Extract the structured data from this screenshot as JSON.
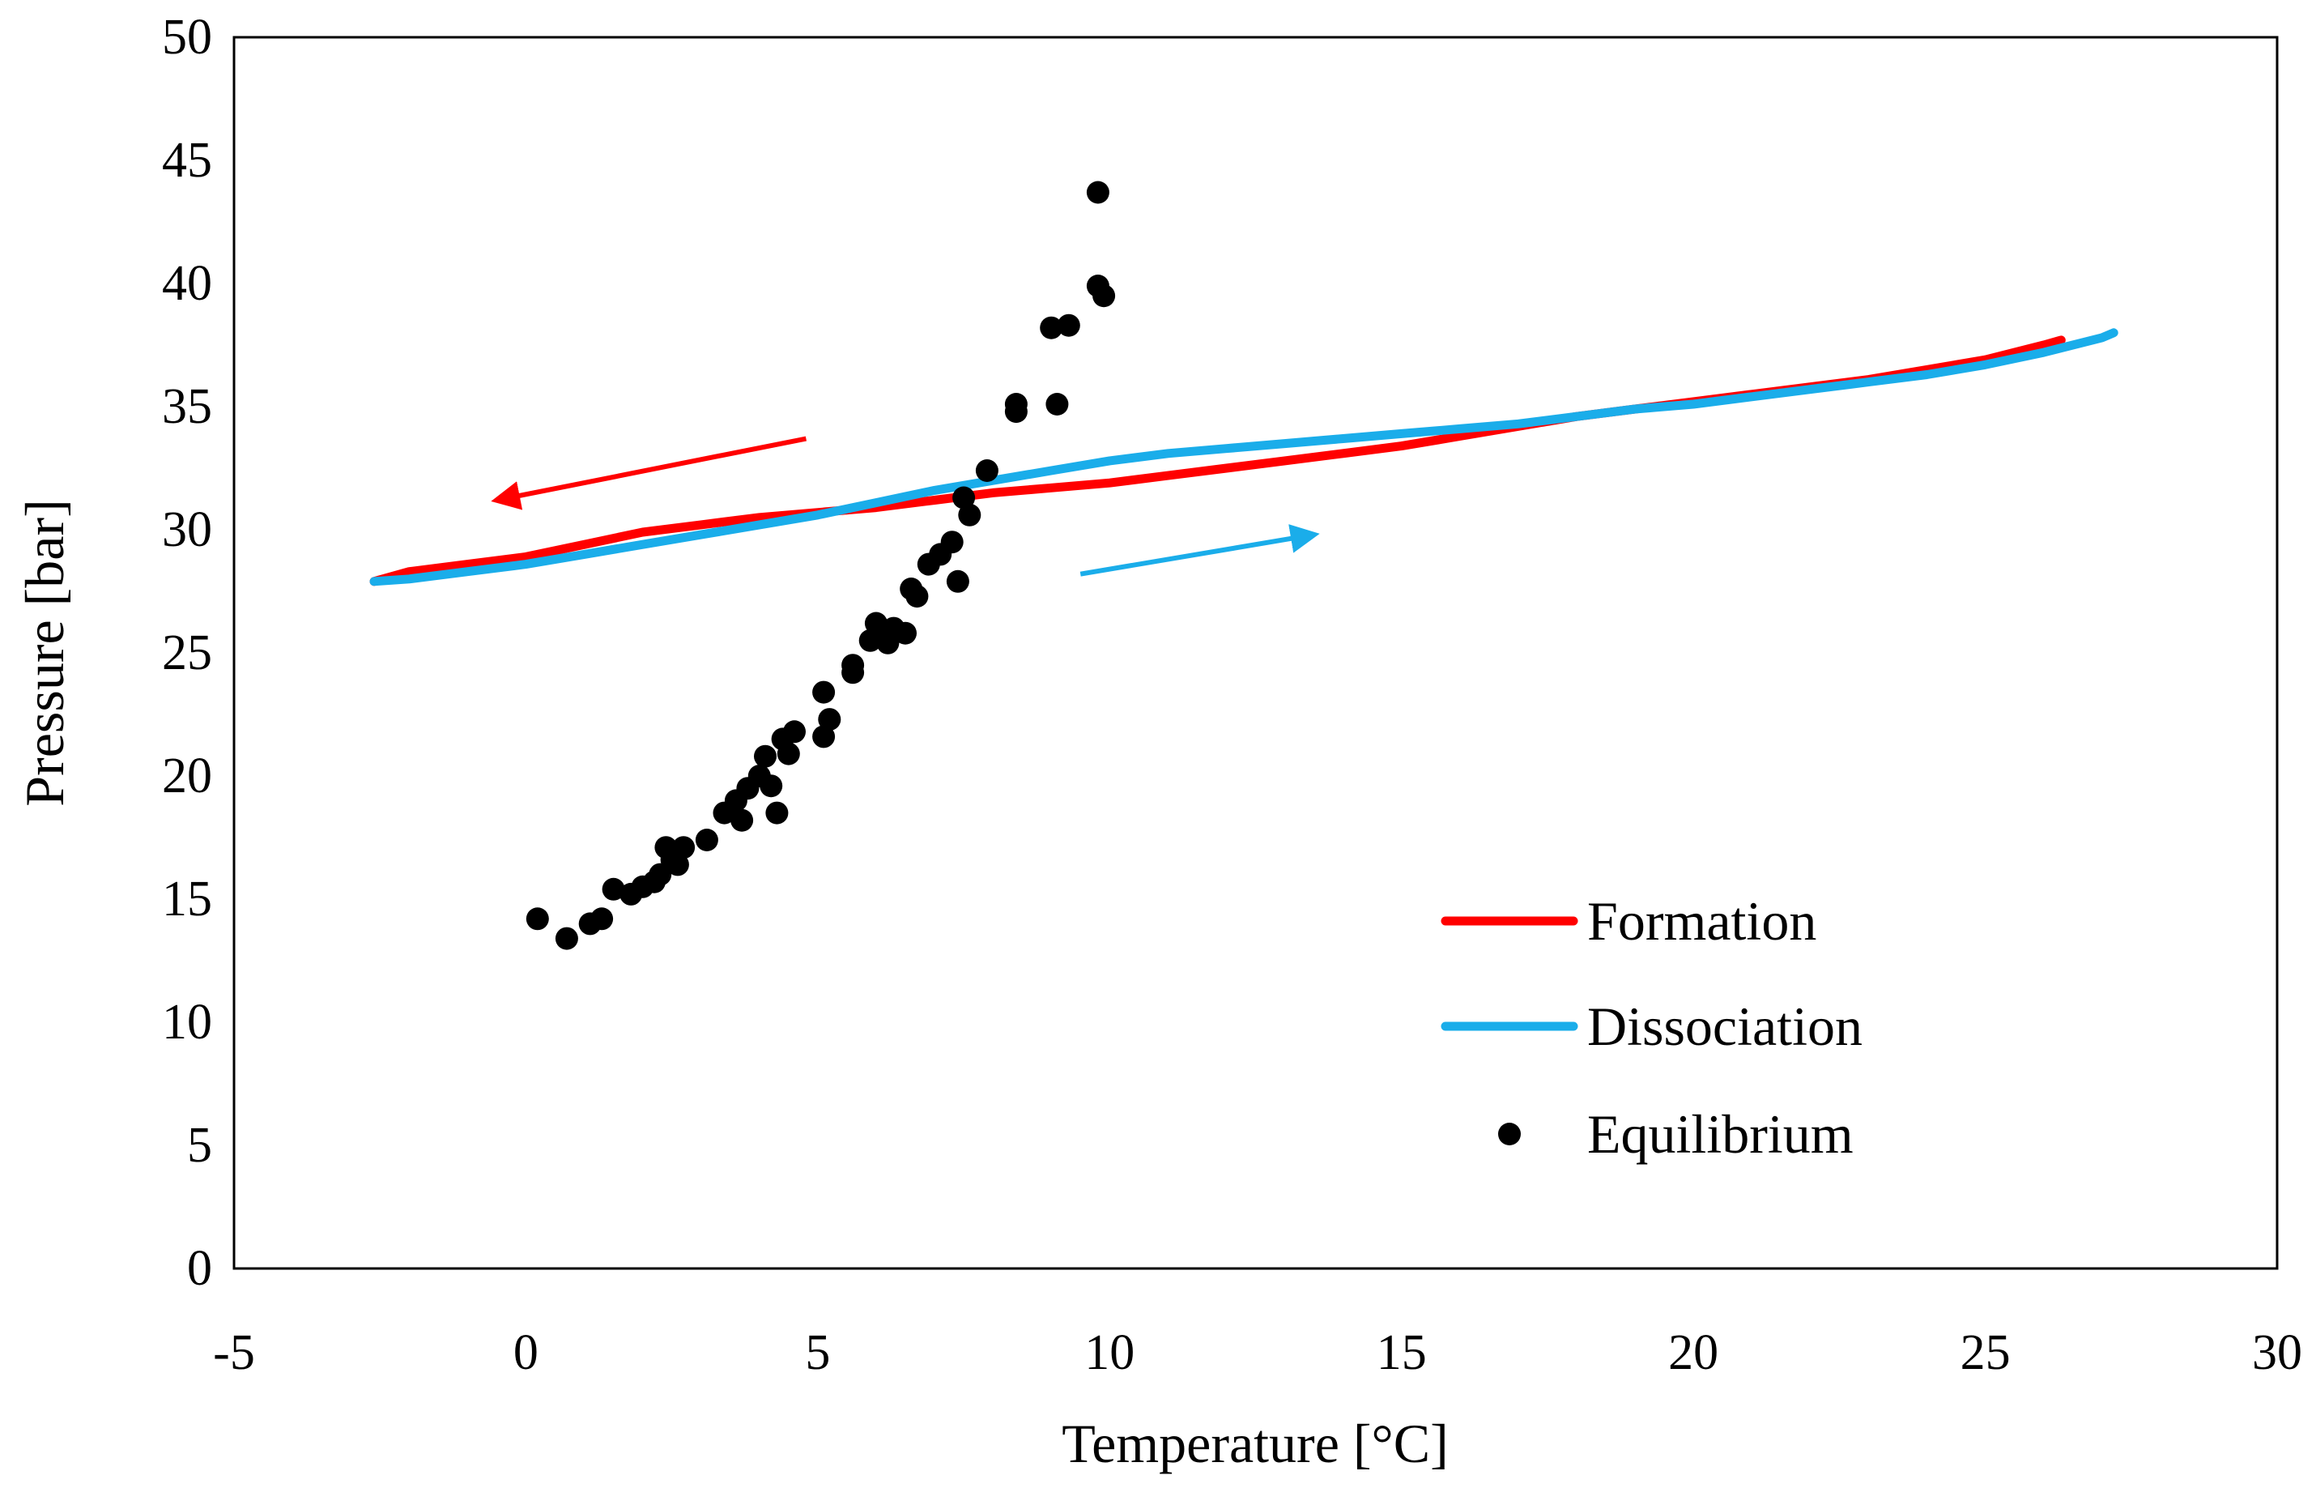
{
  "chart_data": {
    "type": "scatter",
    "title": "",
    "xlabel": "Temperature [°C]",
    "ylabel": "Pressure [bar]",
    "xlim": [
      -5,
      30
    ],
    "ylim": [
      0,
      50
    ],
    "x_ticks": [
      -5,
      0,
      5,
      10,
      15,
      20,
      25,
      30
    ],
    "y_ticks": [
      0,
      5,
      10,
      15,
      20,
      25,
      30,
      35,
      40,
      45,
      50
    ],
    "grid": false,
    "legend_position": "bottom-right",
    "series": [
      {
        "name": "Formation",
        "kind": "line",
        "color": "#ff0000",
        "x": [
          -2.6,
          -2,
          -1,
          0,
          1,
          2,
          3,
          4,
          5,
          6,
          7,
          8,
          9,
          10,
          11,
          12,
          13,
          14,
          15,
          16,
          17,
          18,
          19,
          20,
          21,
          22,
          23,
          24,
          25,
          26,
          26.3
        ],
        "y": [
          27.9,
          28.3,
          28.6,
          28.9,
          29.4,
          29.9,
          30.2,
          30.5,
          30.7,
          30.9,
          31.2,
          31.5,
          31.7,
          31.9,
          32.2,
          32.5,
          32.8,
          33.1,
          33.4,
          33.8,
          34.2,
          34.6,
          34.9,
          35.2,
          35.5,
          35.8,
          36.1,
          36.5,
          36.9,
          37.5,
          37.7
        ]
      },
      {
        "name": "Dissociation",
        "kind": "line",
        "color": "#1aadea",
        "x": [
          -2.6,
          -2,
          -1,
          0,
          1,
          2,
          3,
          4,
          5,
          6,
          7,
          8,
          9,
          10,
          11,
          12,
          13,
          14,
          15,
          16,
          17,
          18,
          19,
          20,
          21,
          22,
          23,
          24,
          25,
          26,
          27,
          27.2
        ],
        "y": [
          27.9,
          28.0,
          28.3,
          28.6,
          29.0,
          29.4,
          29.8,
          30.2,
          30.6,
          31.1,
          31.6,
          32.0,
          32.4,
          32.8,
          33.1,
          33.3,
          33.5,
          33.7,
          33.9,
          34.1,
          34.3,
          34.6,
          34.9,
          35.1,
          35.4,
          35.7,
          36.0,
          36.3,
          36.7,
          37.2,
          37.8,
          38.0
        ]
      },
      {
        "name": "Equilibrium",
        "kind": "scatter",
        "color": "#000000",
        "x": [
          0.2,
          0.7,
          1.1,
          1.3,
          1.5,
          1.8,
          2.0,
          2.2,
          2.3,
          2.4,
          2.5,
          2.6,
          2.7,
          3.1,
          3.4,
          3.6,
          3.7,
          3.8,
          4.0,
          4.1,
          4.2,
          4.3,
          4.4,
          4.5,
          4.6,
          5.1,
          5.1,
          5.2,
          5.6,
          5.6,
          5.9,
          6.0,
          6.1,
          6.2,
          6.3,
          6.5,
          6.6,
          6.7,
          6.9,
          7.1,
          7.3,
          7.4,
          7.5,
          7.6,
          7.9,
          8.4,
          8.4,
          9.0,
          9.1,
          9.3,
          9.8,
          9.8,
          9.9
        ],
        "y": [
          14.2,
          13.4,
          14.0,
          14.2,
          15.4,
          15.2,
          15.5,
          15.7,
          16.0,
          17.1,
          16.6,
          16.4,
          17.1,
          17.4,
          18.5,
          19.0,
          18.2,
          19.5,
          20.0,
          20.8,
          19.6,
          18.5,
          21.5,
          20.9,
          21.8,
          23.4,
          21.6,
          22.3,
          24.2,
          24.5,
          25.5,
          26.2,
          25.9,
          25.4,
          26.0,
          25.8,
          27.6,
          27.3,
          28.6,
          29.0,
          29.5,
          27.9,
          31.3,
          30.6,
          32.4,
          35.1,
          34.8,
          38.2,
          35.1,
          38.3,
          43.7,
          39.9,
          39.5
        ]
      }
    ],
    "annotations": [
      {
        "type": "arrow",
        "color": "#ff0000",
        "from": [
          4.8,
          33.7
        ],
        "to": [
          -0.5,
          31.2
        ],
        "meaning": "cooling direction (formation)"
      },
      {
        "type": "arrow",
        "color": "#1aadea",
        "from": [
          9.5,
          28.2
        ],
        "to": [
          13.5,
          29.8
        ],
        "meaning": "heating direction (dissociation)"
      }
    ]
  }
}
